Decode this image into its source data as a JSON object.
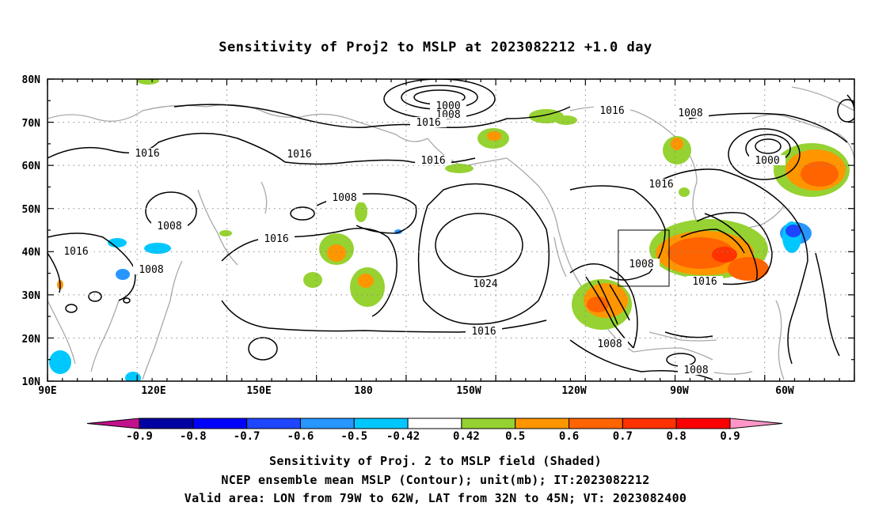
{
  "title": "Sensitivity of Proj2 to MSLP at 2023082212 +1.0 day",
  "map": {
    "lat_labels": [
      "80N",
      "70N",
      "60N",
      "50N",
      "40N",
      "30N",
      "20N",
      "10N"
    ],
    "lon_labels": [
      "90E",
      "120E",
      "150E",
      "180",
      "150W",
      "120W",
      "90W",
      "60W"
    ],
    "contour_labels": [
      "1000",
      "1008",
      "1016",
      "1016",
      "1016",
      "1008",
      "1016",
      "1016",
      "1016",
      "1008",
      "1000",
      "1016",
      "1008",
      "1016",
      "1008",
      "1008",
      "1016",
      "1024",
      "1016",
      "1008",
      "1016",
      "1008"
    ],
    "valid_area": {
      "lon_range": [
        "79W",
        "62W"
      ],
      "lat_range": [
        "32N",
        "45N"
      ]
    }
  },
  "colorbar": {
    "labels": [
      "-0.9",
      "-0.8",
      "-0.7",
      "-0.6",
      "-0.5",
      "-0.42",
      "0.42",
      "0.5",
      "0.6",
      "0.7",
      "0.8",
      "0.9"
    ],
    "colors": [
      "#c0108c",
      "#0000a0",
      "#0000ff",
      "#1e46ff",
      "#2896ff",
      "#00c8ff",
      "#ffffff",
      "#96d232",
      "#ff9600",
      "#ff6400",
      "#ff3200",
      "#ff0000",
      "#ff96c8"
    ]
  },
  "captions": {
    "line1": "Sensitivity of Proj. 2 to MSLP field (Shaded)",
    "line2": "NCEP ensemble mean MSLP (Contour); unit(mb); IT:2023082212",
    "line3": "Valid area: LON from 79W to 62W, LAT from 32N to 45N; VT: 2023082400"
  }
}
